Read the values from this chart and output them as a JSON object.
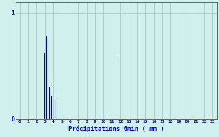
{
  "hours": [
    0,
    1,
    2,
    3,
    4,
    5,
    6,
    7,
    8,
    9,
    10,
    11,
    12,
    13,
    14,
    15,
    16,
    17,
    18,
    19,
    20,
    21,
    22,
    23
  ],
  "bar_positions": [
    3.0,
    3.2,
    3.6,
    3.8,
    4.0,
    4.2,
    12.0
  ],
  "bar_values": [
    0.62,
    0.78,
    0.3,
    0.22,
    0.45,
    0.2,
    0.6
  ],
  "bar_color": "#0000cc",
  "bg_color": "#cff0ec",
  "grid_color": "#a8c8c0",
  "axis_color": "#606060",
  "text_color": "#0000cc",
  "xlabel": "Précipitations 6min ( mm )",
  "ylim": [
    0,
    1.1
  ],
  "xlim": [
    -0.5,
    23.5
  ],
  "ytick_vals": [
    0,
    1
  ],
  "ytick_labels": [
    "0",
    "1"
  ]
}
